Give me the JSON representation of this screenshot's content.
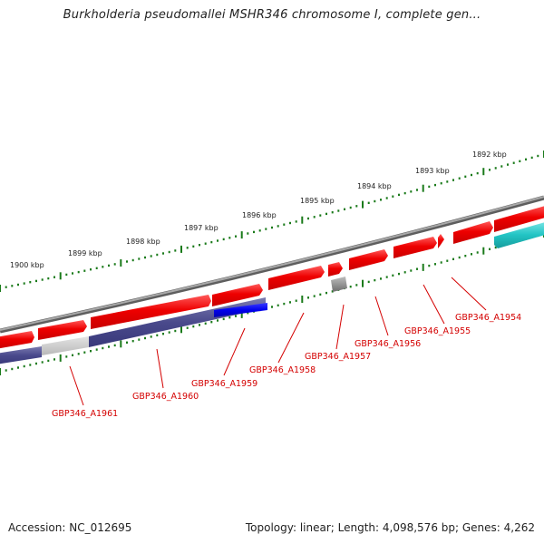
{
  "title": "Burkholderia pseudomallei MSHR346 chromosome I, complete gen...",
  "footer": {
    "accession": "Accession: NC_012695",
    "topology": "Topology: linear; Length: 4,098,576 bp; Genes: 4,262"
  },
  "scale_labels": [
    "1892 kbp",
    "1893 kbp",
    "1894 kbp",
    "1895 kbp",
    "1896 kbp",
    "1897 kbp",
    "1898 kbp",
    "1899 kbp",
    "1900 kbp"
  ],
  "genes": [
    {
      "name": "GBP346_A1954"
    },
    {
      "name": "GBP346_A1955"
    },
    {
      "name": "GBP346_A1956"
    },
    {
      "name": "GBP346_A1957"
    },
    {
      "name": "GBP346_A1958"
    },
    {
      "name": "GBP346_A1959"
    },
    {
      "name": "GBP346_A1960"
    },
    {
      "name": "GBP346_A1961"
    }
  ],
  "colors": {
    "forward_gene": "#ff0000",
    "reverse_gene": "#4a4a8c",
    "selected_gene": "#0000ee",
    "grey_gene": "#8a8a8a",
    "cyan_gene": "#22c4c4",
    "label": "#d40000",
    "scale_dots": "#1a7a1a",
    "backbone": "#888888"
  }
}
